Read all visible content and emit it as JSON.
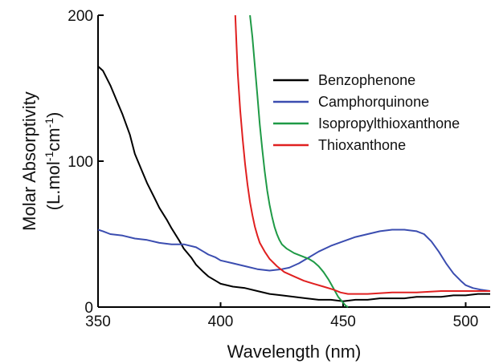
{
  "chart_data": {
    "type": "line",
    "title": "",
    "xlabel": "Wavelength (nm)",
    "ylabel_line1": "Molar Absorptivity",
    "ylabel_line2_parts": [
      "(L.mol",
      "-1",
      "cm",
      "-1",
      ")"
    ],
    "xlim": [
      350,
      510
    ],
    "ylim": [
      0,
      200
    ],
    "xticks": [
      350,
      400,
      450,
      500
    ],
    "yticks": [
      0,
      100,
      200
    ],
    "grid": false,
    "legend_position": "top-right",
    "series": [
      {
        "name": "Benzophenone",
        "color": "#000000",
        "points": [
          [
            350,
            165
          ],
          [
            352,
            162
          ],
          [
            355,
            152
          ],
          [
            358,
            140
          ],
          [
            360,
            132
          ],
          [
            363,
            118
          ],
          [
            365,
            105
          ],
          [
            368,
            93
          ],
          [
            370,
            85
          ],
          [
            373,
            75
          ],
          [
            375,
            68
          ],
          [
            378,
            60
          ],
          [
            380,
            54
          ],
          [
            383,
            46
          ],
          [
            385,
            40
          ],
          [
            388,
            34
          ],
          [
            390,
            29
          ],
          [
            393,
            24
          ],
          [
            395,
            21
          ],
          [
            398,
            18
          ],
          [
            400,
            16
          ],
          [
            405,
            14
          ],
          [
            410,
            13
          ],
          [
            415,
            11
          ],
          [
            420,
            9
          ],
          [
            425,
            8
          ],
          [
            430,
            7
          ],
          [
            435,
            6
          ],
          [
            440,
            5
          ],
          [
            445,
            5
          ],
          [
            450,
            4
          ],
          [
            455,
            5
          ],
          [
            460,
            5
          ],
          [
            465,
            6
          ],
          [
            470,
            6
          ],
          [
            475,
            6
          ],
          [
            480,
            7
          ],
          [
            485,
            7
          ],
          [
            490,
            7
          ],
          [
            495,
            8
          ],
          [
            500,
            8
          ],
          [
            505,
            9
          ],
          [
            510,
            9
          ]
        ]
      },
      {
        "name": "Camphorquinone",
        "color": "#3b4db0",
        "points": [
          [
            350,
            53
          ],
          [
            352,
            52
          ],
          [
            355,
            50
          ],
          [
            360,
            49
          ],
          [
            365,
            47
          ],
          [
            370,
            46
          ],
          [
            375,
            44
          ],
          [
            380,
            43
          ],
          [
            385,
            43
          ],
          [
            390,
            41
          ],
          [
            393,
            38
          ],
          [
            395,
            36
          ],
          [
            398,
            34
          ],
          [
            400,
            32
          ],
          [
            405,
            30
          ],
          [
            410,
            28
          ],
          [
            415,
            26
          ],
          [
            420,
            25
          ],
          [
            425,
            26
          ],
          [
            428,
            27
          ],
          [
            432,
            30
          ],
          [
            436,
            34
          ],
          [
            440,
            38
          ],
          [
            445,
            42
          ],
          [
            450,
            45
          ],
          [
            455,
            48
          ],
          [
            460,
            50
          ],
          [
            465,
            52
          ],
          [
            470,
            53
          ],
          [
            475,
            53
          ],
          [
            480,
            52
          ],
          [
            483,
            50
          ],
          [
            486,
            45
          ],
          [
            489,
            38
          ],
          [
            492,
            30
          ],
          [
            495,
            23
          ],
          [
            498,
            18
          ],
          [
            500,
            15
          ],
          [
            503,
            13
          ],
          [
            506,
            12
          ],
          [
            510,
            11
          ]
        ]
      },
      {
        "name": "Isopropylthioxanthone",
        "color": "#1f9a46",
        "points": [
          [
            412,
            200
          ],
          [
            413,
            185
          ],
          [
            414,
            165
          ],
          [
            415,
            145
          ],
          [
            416,
            125
          ],
          [
            417,
            108
          ],
          [
            418,
            93
          ],
          [
            419,
            80
          ],
          [
            420,
            70
          ],
          [
            421,
            62
          ],
          [
            422,
            55
          ],
          [
            423,
            50
          ],
          [
            424,
            46
          ],
          [
            425,
            43
          ],
          [
            427,
            40
          ],
          [
            430,
            37
          ],
          [
            433,
            35
          ],
          [
            436,
            33
          ],
          [
            438,
            31
          ],
          [
            440,
            28
          ],
          [
            442,
            24
          ],
          [
            444,
            19
          ],
          [
            446,
            13
          ],
          [
            448,
            7
          ],
          [
            450,
            3
          ],
          [
            451,
            1
          ],
          [
            452,
            0
          ]
        ]
      },
      {
        "name": "Thioxanthone",
        "color": "#e02020",
        "points": [
          [
            406,
            200
          ],
          [
            406.5,
            180
          ],
          [
            407,
            160
          ],
          [
            408,
            135
          ],
          [
            409,
            115
          ],
          [
            410,
            98
          ],
          [
            411,
            84
          ],
          [
            412,
            72
          ],
          [
            413,
            63
          ],
          [
            414,
            55
          ],
          [
            415,
            49
          ],
          [
            416,
            44
          ],
          [
            418,
            38
          ],
          [
            420,
            33
          ],
          [
            423,
            28
          ],
          [
            426,
            24
          ],
          [
            430,
            21
          ],
          [
            434,
            18
          ],
          [
            438,
            16
          ],
          [
            442,
            14
          ],
          [
            446,
            12
          ],
          [
            449,
            10
          ],
          [
            452,
            9
          ],
          [
            455,
            9
          ],
          [
            460,
            9
          ],
          [
            470,
            10
          ],
          [
            480,
            10
          ],
          [
            490,
            11
          ],
          [
            500,
            11
          ],
          [
            510,
            11
          ]
        ]
      }
    ]
  }
}
